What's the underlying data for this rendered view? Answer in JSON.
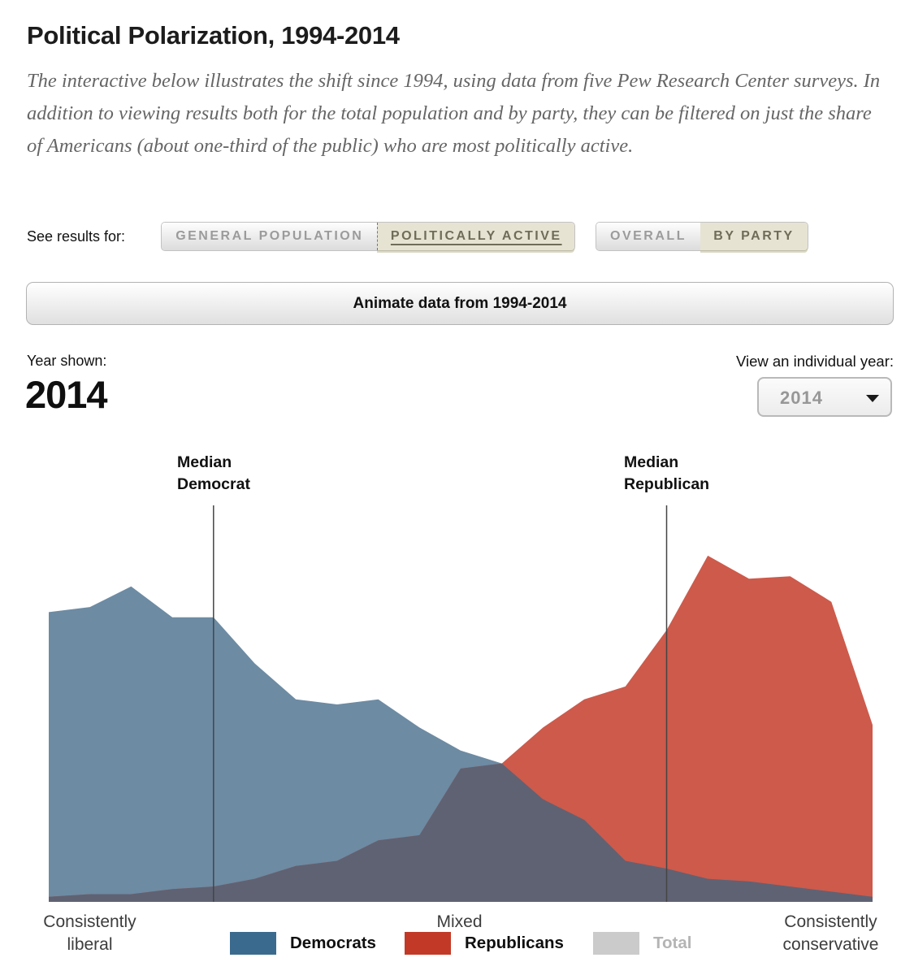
{
  "header": {
    "title": "Political Polarization, 1994-2014",
    "description": "The interactive below illustrates the shift since 1994, using data from five Pew Research Center surveys. In addition to viewing results both for the total population and by party, they can be filtered on just the share of Americans (about one-third of the public) who are most politically active."
  },
  "controls": {
    "see_results_label": "See results for:",
    "population_toggle": [
      {
        "label": "GENERAL POPULATION",
        "active": false
      },
      {
        "label": "POLITICALLY ACTIVE",
        "active": true
      }
    ],
    "view_toggle": [
      {
        "label": "OVERALL",
        "active": false
      },
      {
        "label": "BY PARTY",
        "active": true
      }
    ],
    "animate_button_label": "Animate data from 1994-2014"
  },
  "year_panel": {
    "year_shown_label": "Year shown:",
    "year_shown_value": "2014",
    "individual_year_label": "View an individual year:",
    "dropdown_value": "2014"
  },
  "chart_data": {
    "type": "area",
    "description": "Ideological distribution of politically active partisans, 2014; 21 bins from consistently liberal to consistently conservative; values are percent of each party's politically active members",
    "bins": 21,
    "axis_labels": [
      "Consistently\nliberal",
      "Mixed",
      "Consistently\nconservative"
    ],
    "ylim": [
      0,
      14
    ],
    "series": [
      {
        "name": "Democrats",
        "color": "#6d8ba3",
        "values": [
          11.3,
          11.5,
          12.3,
          11.1,
          11.1,
          9.3,
          7.9,
          7.7,
          7.9,
          6.8,
          5.9,
          5.4,
          4.0,
          3.2,
          1.6,
          1.3,
          0.9,
          0.8,
          0.6,
          0.4,
          0.2
        ]
      },
      {
        "name": "Republicans",
        "color": "#cd5a4b",
        "values": [
          0.2,
          0.3,
          0.3,
          0.5,
          0.6,
          0.9,
          1.4,
          1.6,
          2.4,
          2.6,
          5.2,
          5.4,
          6.8,
          7.9,
          8.4,
          10.6,
          13.5,
          12.6,
          12.7,
          11.7,
          6.9
        ]
      }
    ],
    "overlap_color": "#5f6273",
    "median_line_color": "#454545",
    "annotations": [
      {
        "label": "Median\nDemocrat",
        "bin": 4
      },
      {
        "label": "Median\nRepublican",
        "bin": 15
      }
    ]
  },
  "legend": {
    "items": [
      {
        "label": "Democrats",
        "swatch_color": "#3a6b8e",
        "label_color": "#0f0f0f",
        "selected": true
      },
      {
        "label": "Republicans",
        "swatch_color": "#c23a27",
        "label_color": "#0f0f0f",
        "selected": true
      },
      {
        "label": "Total",
        "swatch_color": "#cbcbcb",
        "label_color": "#b4b4b4",
        "selected": false
      }
    ]
  }
}
